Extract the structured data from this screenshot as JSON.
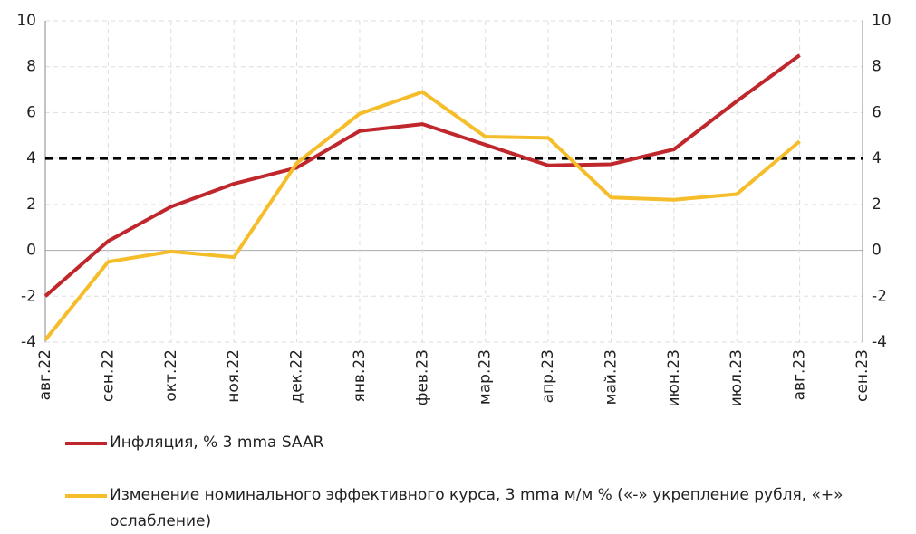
{
  "chart_data": {
    "type": "line",
    "categories": [
      "авг.22",
      "сен.22",
      "окт.22",
      "ноя.22",
      "дек.22",
      "янв.23",
      "фев.23",
      "мар.23",
      "апр.23",
      "май.23",
      "июн.23",
      "июл.23",
      "авг.23",
      "сен.23"
    ],
    "series": [
      {
        "name": "Инфляция, % 3 mma SAAR",
        "color": "#c0272d",
        "values": [
          -2,
          0.4,
          1.9,
          2.9,
          3.6,
          5.2,
          5.5,
          4.6,
          3.7,
          3.75,
          4.4,
          6.5,
          8.5,
          null
        ]
      },
      {
        "name": "Изменение номинального эффективного курса, 3 mma м/м % («-» укрепление рубля, «+» ослабление)",
        "color": "#f5bd2a",
        "values": [
          -3.9,
          -0.5,
          -0.05,
          -0.3,
          3.8,
          5.95,
          6.9,
          4.95,
          4.9,
          2.3,
          2.2,
          2.45,
          4.75,
          null
        ]
      }
    ],
    "reference_line": 4,
    "ylim": [
      -4,
      10
    ],
    "yticks": [
      -4,
      -2,
      0,
      2,
      4,
      6,
      8,
      10
    ],
    "y2lim": [
      -4,
      10
    ],
    "y2ticks": [
      -4,
      -2,
      0,
      2,
      4,
      6,
      8,
      10
    ],
    "grid": true
  }
}
